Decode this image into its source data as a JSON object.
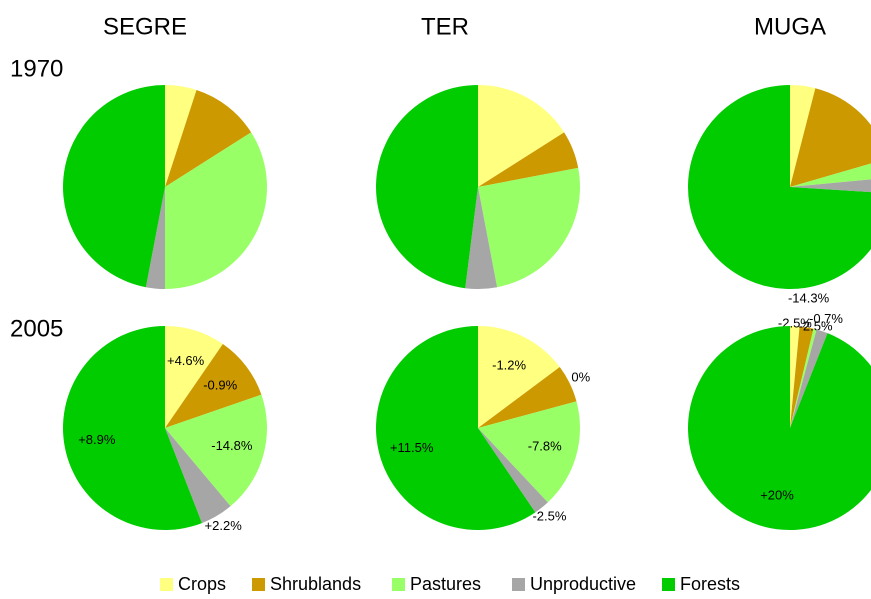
{
  "chart_data": [
    {
      "type": "pie",
      "title": "SEGRE",
      "row_label": "1970",
      "categories": [
        "Crops",
        "Shrublands",
        "Pastures",
        "Unproductive",
        "Forests"
      ],
      "colors": [
        "#ffff80",
        "#cc9900",
        "#99ff66",
        "#a6a6a6",
        "#00cc00"
      ],
      "values": [
        5,
        11,
        34,
        3,
        47
      ]
    },
    {
      "type": "pie",
      "title": "TER",
      "colors": [
        "#ffff80",
        "#cc9900",
        "#99ff66",
        "#a6a6a6",
        "#00cc00"
      ],
      "values": [
        16,
        6,
        25,
        5,
        48
      ]
    },
    {
      "type": "pie",
      "title": "MUGA",
      "colors": [
        "#ffff80",
        "#cc9900",
        "#99ff66",
        "#a6a6a6",
        "#00cc00"
      ],
      "values": [
        4,
        16.5,
        3,
        2.5,
        74
      ]
    },
    {
      "type": "pie",
      "row_label": "2005",
      "colors": [
        "#ffff80",
        "#cc9900",
        "#99ff66",
        "#a6a6a6",
        "#00cc00"
      ],
      "values": [
        9.6,
        10.1,
        19.2,
        5.2,
        55.9
      ],
      "change_labels": [
        "+4.6%",
        "-0.9%",
        "-14.8%",
        "+2.2%",
        "+8.9%"
      ]
    },
    {
      "type": "pie",
      "colors": [
        "#ffff80",
        "#cc9900",
        "#99ff66",
        "#a6a6a6",
        "#00cc00"
      ],
      "values": [
        14.8,
        6,
        17.2,
        2.5,
        59.5
      ],
      "change_labels": [
        "-1.2%",
        "0%",
        "-7.8%",
        "-2.5%",
        "+11.5%"
      ]
    },
    {
      "type": "pie",
      "colors": [
        "#ffff80",
        "#cc9900",
        "#99ff66",
        "#a6a6a6",
        "#00cc00"
      ],
      "values": [
        1.5,
        2.2,
        0.5,
        1.8,
        94
      ],
      "change_labels": [
        "-2.5%",
        "-14.3%",
        "-2.5%",
        "-0.7%",
        "+20%"
      ]
    }
  ]
}
